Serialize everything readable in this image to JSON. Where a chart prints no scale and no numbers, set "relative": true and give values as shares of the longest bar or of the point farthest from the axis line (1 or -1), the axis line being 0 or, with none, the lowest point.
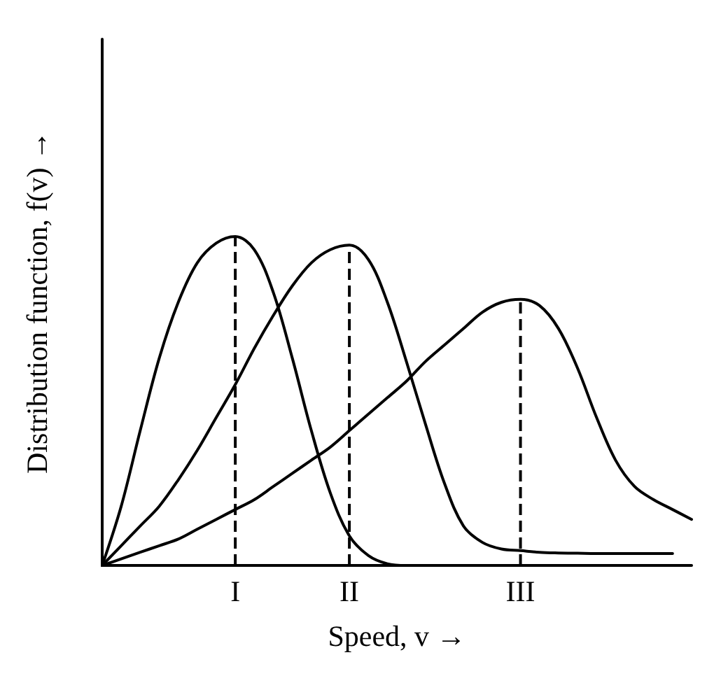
{
  "chart_data": {
    "type": "line",
    "relative": true,
    "xlabel": "Speed, v →",
    "ylabel": "Distribution function, f(v) →",
    "grid": false,
    "marker": "none",
    "line_style": "solid",
    "categories": [
      null,
      null,
      null,
      null,
      null,
      null,
      null,
      "I",
      null,
      null,
      null,
      null,
      null,
      "II",
      null,
      null,
      null,
      null,
      null,
      null,
      null,
      null,
      "III",
      null,
      null,
      null,
      null,
      null,
      null,
      null,
      null,
      null
    ],
    "series": [
      {
        "color": "#000000",
        "values": [
          0,
          0.18,
          0.41,
          0.63,
          0.8,
          0.92,
          0.98,
          1,
          0.96,
          0.83,
          0.63,
          0.41,
          0.22,
          0.09,
          0.03,
          0.005,
          0,
          null,
          null,
          null,
          null,
          null,
          null,
          null,
          null,
          null,
          null,
          null,
          null,
          null,
          null,
          null
        ]
      },
      {
        "color": "#000000",
        "values": [
          0,
          0.06,
          0.12,
          0.18,
          0.26,
          0.35,
          0.45,
          0.55,
          0.66,
          0.76,
          0.85,
          0.92,
          0.96,
          0.974,
          0.93,
          0.8,
          0.62,
          0.43,
          0.25,
          0.12,
          0.07,
          0.05,
          0.045,
          0.04,
          0.038,
          0.037,
          0.036,
          0.036,
          0.036,
          0.036,
          0.036,
          null
        ]
      },
      {
        "color": "#000000",
        "values": [
          0,
          0.02,
          0.04,
          0.06,
          0.08,
          0.11,
          0.14,
          0.17,
          0.2,
          0.24,
          0.28,
          0.32,
          0.36,
          0.41,
          0.46,
          0.51,
          0.56,
          0.62,
          0.67,
          0.72,
          0.77,
          0.8,
          0.809,
          0.79,
          0.72,
          0.6,
          0.45,
          0.32,
          0.24,
          0.2,
          0.17,
          0.14
        ]
      }
    ],
    "ref_lines": [
      {
        "axis": "x",
        "value": "I",
        "line_style": "dashed",
        "color": "#000000"
      },
      {
        "axis": "x",
        "value": "II",
        "line_style": "dashed",
        "color": "#000000"
      },
      {
        "axis": "x",
        "value": "III",
        "line_style": "dashed",
        "color": "#000000"
      }
    ]
  }
}
